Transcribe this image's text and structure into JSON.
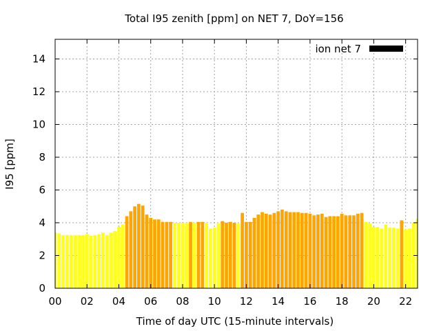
{
  "chart_data": {
    "type": "bar",
    "title": "Total I95 zenith [ppm] on NET 7, DoY=156",
    "xlabel": "Time of day UTC (15-minute intervals)",
    "ylabel": "I95 [ppm]",
    "xlim": [
      0,
      22.75
    ],
    "ylim": [
      0,
      15.2
    ],
    "grid": true,
    "legend": {
      "position": "top-right",
      "label": "ion net 7",
      "color": "#000000"
    },
    "x_ticks": [
      {
        "value": 0,
        "label": "00"
      },
      {
        "value": 2,
        "label": "02"
      },
      {
        "value": 4,
        "label": "04"
      },
      {
        "value": 6,
        "label": "06"
      },
      {
        "value": 8,
        "label": "08"
      },
      {
        "value": 10,
        "label": "10"
      },
      {
        "value": 12,
        "label": "12"
      },
      {
        "value": 14,
        "label": "14"
      },
      {
        "value": 16,
        "label": "16"
      },
      {
        "value": 18,
        "label": "18"
      },
      {
        "value": 20,
        "label": "20"
      },
      {
        "value": 22,
        "label": "22"
      }
    ],
    "y_ticks": [
      {
        "value": 0,
        "label": "0"
      },
      {
        "value": 2,
        "label": "2"
      },
      {
        "value": 4,
        "label": "4"
      },
      {
        "value": 6,
        "label": "6"
      },
      {
        "value": 8,
        "label": "8"
      },
      {
        "value": 10,
        "label": "10"
      },
      {
        "value": 12,
        "label": "12"
      },
      {
        "value": 14,
        "label": "14"
      }
    ],
    "bar_interval_hours": 0.25,
    "colors": {
      "low": "#ffff1a",
      "high": "#ffa500"
    },
    "x": [
      0,
      0.25,
      0.5,
      0.75,
      1,
      1.25,
      1.5,
      1.75,
      2,
      2.25,
      2.5,
      2.75,
      3,
      3.25,
      3.5,
      3.75,
      4,
      4.25,
      4.5,
      4.75,
      5,
      5.25,
      5.5,
      5.75,
      6,
      6.25,
      6.5,
      6.75,
      7,
      7.25,
      7.5,
      7.75,
      8,
      8.25,
      8.5,
      8.75,
      9,
      9.25,
      9.5,
      9.75,
      10,
      10.25,
      10.5,
      10.75,
      11,
      11.25,
      11.5,
      11.75,
      12,
      12.25,
      12.5,
      12.75,
      13,
      13.25,
      13.5,
      13.75,
      14,
      14.25,
      14.5,
      14.75,
      15,
      15.25,
      15.5,
      15.75,
      16,
      16.25,
      16.5,
      16.75,
      17,
      17.25,
      17.5,
      17.75,
      18,
      18.25,
      18.5,
      18.75,
      19,
      19.25,
      19.5,
      19.75,
      20,
      20.25,
      20.5,
      20.75,
      21,
      21.25,
      21.5,
      21.75,
      22,
      22.25,
      22.5,
      22.75
    ],
    "values": [
      3.4,
      3.35,
      3.25,
      3.25,
      3.25,
      3.25,
      3.25,
      3.25,
      3.3,
      3.2,
      3.25,
      3.3,
      3.4,
      3.25,
      3.4,
      3.5,
      3.75,
      3.9,
      4.4,
      4.7,
      5.0,
      5.15,
      5.05,
      4.5,
      4.3,
      4.2,
      4.2,
      4.05,
      4.05,
      4.05,
      4.0,
      4.0,
      4.0,
      4.0,
      4.05,
      4.0,
      4.05,
      4.05,
      4.0,
      3.65,
      3.7,
      3.95,
      4.1,
      4.0,
      4.05,
      4.0,
      3.95,
      4.6,
      4.05,
      4.05,
      4.3,
      4.5,
      4.65,
      4.55,
      4.5,
      4.6,
      4.7,
      4.8,
      4.7,
      4.65,
      4.65,
      4.65,
      4.6,
      4.6,
      4.55,
      4.45,
      4.5,
      4.55,
      4.35,
      4.4,
      4.4,
      4.4,
      4.55,
      4.45,
      4.45,
      4.45,
      4.55,
      4.6,
      4.05,
      3.95,
      3.75,
      3.75,
      3.65,
      3.9,
      3.7,
      3.7,
      3.65,
      4.15,
      3.6,
      3.65,
      4.0,
      4.25
    ],
    "levels": [
      "low",
      "low",
      "low",
      "low",
      "low",
      "low",
      "low",
      "low",
      "low",
      "low",
      "low",
      "low",
      "low",
      "low",
      "low",
      "low",
      "low",
      "low",
      "high",
      "high",
      "high",
      "high",
      "high",
      "high",
      "high",
      "high",
      "high",
      "high",
      "high",
      "high",
      "low",
      "low",
      "low",
      "low",
      "high",
      "low",
      "high",
      "high",
      "low",
      "low",
      "low",
      "low",
      "high",
      "high",
      "high",
      "high",
      "low",
      "high",
      "high",
      "high",
      "high",
      "high",
      "high",
      "high",
      "high",
      "high",
      "high",
      "high",
      "high",
      "high",
      "high",
      "high",
      "high",
      "high",
      "high",
      "high",
      "high",
      "high",
      "high",
      "high",
      "high",
      "high",
      "high",
      "high",
      "high",
      "high",
      "high",
      "high",
      "low",
      "low",
      "low",
      "low",
      "low",
      "low",
      "low",
      "low",
      "low",
      "high",
      "low",
      "low",
      "low",
      "low"
    ]
  }
}
